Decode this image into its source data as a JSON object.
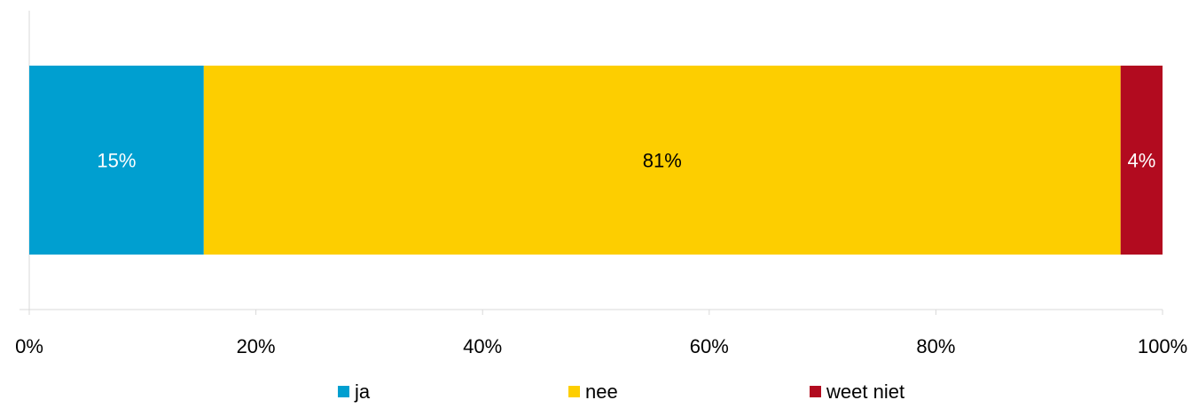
{
  "chart_data": {
    "type": "bar",
    "orientation": "horizontal",
    "stacked": true,
    "categories": [
      ""
    ],
    "series": [
      {
        "name": "ja",
        "values": [
          15.4
        ],
        "label": "15%",
        "color": "#009FD0",
        "label_color": "#ffffff"
      },
      {
        "name": "nee",
        "values": [
          80.9
        ],
        "label": "81%",
        "color": "#FDCE00",
        "label_color": "#000000"
      },
      {
        "name": "weet niet",
        "values": [
          3.7
        ],
        "label": "4%",
        "color": "#B20B1F",
        "label_color": "#ffffff"
      }
    ],
    "x_ticks": [
      "0%",
      "20%",
      "40%",
      "60%",
      "80%",
      "100%"
    ],
    "tick_values": [
      0,
      20,
      40,
      60,
      80,
      100
    ],
    "xlim": [
      0,
      100
    ],
    "title": "",
    "xlabel": "",
    "ylabel": "",
    "grid": false,
    "legend_position": "bottom"
  }
}
